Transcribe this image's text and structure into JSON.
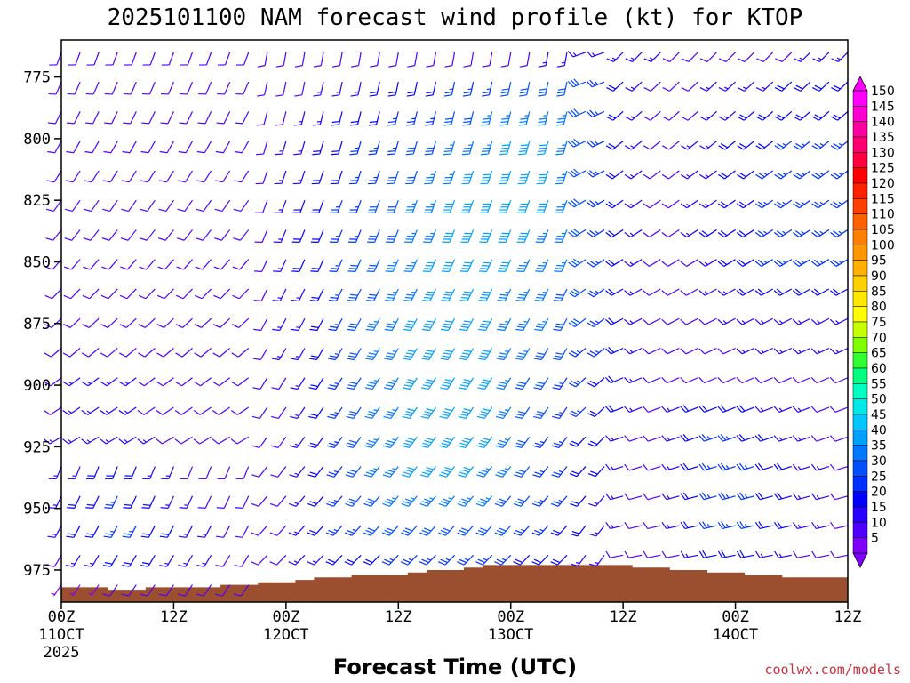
{
  "page": {
    "credit": "coolwx.com/models"
  },
  "chart_data": {
    "type": "wind_barb_profile",
    "title": "2025101100 NAM forecast wind profile (kt) for KTOP",
    "xlabel": "Forecast Time (UTC)",
    "ylabel": "",
    "x_ticks": [
      {
        "hour": 0,
        "label": "00Z",
        "sub": "11OCT",
        "sub2": "2025"
      },
      {
        "hour": 12,
        "label": "12Z",
        "sub": "",
        "sub2": ""
      },
      {
        "hour": 24,
        "label": "00Z",
        "sub": "12OCT",
        "sub2": ""
      },
      {
        "hour": 36,
        "label": "12Z",
        "sub": "",
        "sub2": ""
      },
      {
        "hour": 48,
        "label": "00Z",
        "sub": "13OCT",
        "sub2": ""
      },
      {
        "hour": 60,
        "label": "12Z",
        "sub": "",
        "sub2": ""
      },
      {
        "hour": 72,
        "label": "00Z",
        "sub": "14OCT",
        "sub2": ""
      },
      {
        "hour": 84,
        "label": "12Z",
        "sub": "",
        "sub2": ""
      }
    ],
    "y_ticks": [
      775,
      800,
      825,
      850,
      875,
      900,
      925,
      950,
      975
    ],
    "xlim": [
      0,
      84
    ],
    "ylim_hpa": [
      760,
      988
    ],
    "time_step_hours": 2,
    "pressure_levels_hpa": [
      765,
      777,
      789,
      801,
      813,
      825,
      837,
      849,
      861,
      873,
      885,
      897,
      909,
      921,
      933,
      945,
      957,
      969,
      981
    ],
    "wind_speed_kt": [
      [
        10,
        10,
        10,
        10,
        10,
        10,
        10,
        10,
        10,
        10,
        10,
        10,
        10,
        10,
        10,
        10,
        10,
        10,
        10,
        10,
        10,
        10,
        10,
        10,
        10,
        10,
        15,
        15,
        15,
        15,
        15,
        15,
        15,
        10,
        10,
        10,
        10,
        10,
        10,
        10,
        15,
        15,
        15
      ],
      [
        10,
        10,
        10,
        10,
        10,
        10,
        10,
        10,
        10,
        10,
        10,
        10,
        10,
        10,
        15,
        15,
        15,
        20,
        20,
        20,
        20,
        25,
        25,
        25,
        30,
        30,
        30,
        30,
        30,
        25,
        20,
        15,
        10,
        10,
        10,
        15,
        15,
        15,
        15,
        20,
        20,
        20,
        20
      ],
      [
        10,
        10,
        10,
        10,
        10,
        10,
        10,
        10,
        10,
        10,
        10,
        10,
        10,
        15,
        15,
        20,
        20,
        20,
        25,
        25,
        25,
        30,
        30,
        35,
        35,
        35,
        35,
        35,
        30,
        25,
        20,
        15,
        10,
        10,
        10,
        15,
        15,
        20,
        20,
        20,
        20,
        20,
        20
      ],
      [
        10,
        10,
        10,
        10,
        10,
        10,
        10,
        10,
        10,
        10,
        10,
        10,
        15,
        15,
        20,
        20,
        25,
        25,
        25,
        30,
        30,
        35,
        35,
        35,
        40,
        40,
        40,
        35,
        30,
        25,
        20,
        15,
        10,
        10,
        15,
        15,
        20,
        20,
        20,
        25,
        25,
        25,
        25
      ],
      [
        10,
        10,
        10,
        10,
        10,
        10,
        10,
        10,
        10,
        10,
        10,
        10,
        15,
        15,
        20,
        20,
        25,
        25,
        30,
        30,
        35,
        35,
        40,
        40,
        40,
        40,
        40,
        35,
        30,
        25,
        20,
        15,
        10,
        10,
        15,
        15,
        20,
        20,
        25,
        25,
        25,
        25,
        25
      ],
      [
        10,
        10,
        10,
        10,
        10,
        10,
        10,
        10,
        10,
        10,
        10,
        10,
        15,
        20,
        20,
        25,
        25,
        30,
        30,
        35,
        35,
        40,
        40,
        40,
        40,
        40,
        40,
        35,
        30,
        25,
        20,
        15,
        10,
        10,
        15,
        15,
        20,
        20,
        25,
        25,
        25,
        25,
        25
      ],
      [
        10,
        10,
        10,
        10,
        10,
        10,
        10,
        10,
        10,
        10,
        10,
        10,
        15,
        20,
        20,
        25,
        25,
        30,
        30,
        35,
        35,
        40,
        40,
        40,
        40,
        40,
        35,
        35,
        30,
        25,
        20,
        15,
        10,
        10,
        15,
        20,
        20,
        20,
        25,
        25,
        25,
        25,
        25
      ],
      [
        10,
        10,
        10,
        10,
        10,
        10,
        10,
        10,
        10,
        10,
        10,
        10,
        15,
        20,
        20,
        25,
        30,
        30,
        35,
        35,
        40,
        40,
        40,
        40,
        40,
        35,
        35,
        35,
        30,
        25,
        20,
        15,
        10,
        10,
        10,
        15,
        20,
        20,
        25,
        25,
        25,
        25,
        25
      ],
      [
        10,
        10,
        10,
        10,
        10,
        10,
        10,
        10,
        10,
        10,
        10,
        10,
        15,
        15,
        20,
        25,
        30,
        30,
        35,
        35,
        40,
        40,
        40,
        40,
        35,
        35,
        35,
        30,
        30,
        25,
        20,
        15,
        10,
        10,
        10,
        15,
        15,
        20,
        20,
        20,
        20,
        20,
        20
      ],
      [
        10,
        10,
        10,
        10,
        10,
        10,
        10,
        10,
        10,
        10,
        10,
        10,
        15,
        15,
        20,
        25,
        30,
        35,
        35,
        40,
        40,
        40,
        40,
        40,
        35,
        35,
        35,
        30,
        30,
        25,
        20,
        15,
        10,
        10,
        10,
        10,
        15,
        15,
        15,
        15,
        15,
        15,
        15
      ],
      [
        10,
        10,
        10,
        10,
        10,
        10,
        10,
        10,
        10,
        10,
        10,
        10,
        15,
        15,
        20,
        25,
        30,
        35,
        35,
        40,
        40,
        40,
        40,
        40,
        35,
        35,
        30,
        30,
        25,
        25,
        20,
        15,
        10,
        10,
        10,
        10,
        10,
        15,
        15,
        15,
        15,
        15,
        15
      ],
      [
        10,
        15,
        15,
        15,
        15,
        10,
        10,
        10,
        10,
        10,
        10,
        10,
        10,
        15,
        20,
        25,
        30,
        35,
        35,
        40,
        40,
        40,
        40,
        40,
        35,
        30,
        30,
        25,
        25,
        20,
        20,
        15,
        10,
        10,
        10,
        10,
        10,
        10,
        10,
        10,
        10,
        10,
        10
      ],
      [
        10,
        15,
        15,
        15,
        15,
        10,
        10,
        10,
        10,
        10,
        10,
        10,
        10,
        15,
        20,
        25,
        30,
        35,
        35,
        40,
        40,
        40,
        40,
        40,
        35,
        30,
        30,
        25,
        25,
        20,
        20,
        15,
        10,
        15,
        20,
        20,
        20,
        20,
        15,
        15,
        15,
        10,
        10
      ],
      [
        15,
        15,
        15,
        15,
        15,
        15,
        10,
        10,
        10,
        10,
        10,
        10,
        10,
        15,
        20,
        25,
        30,
        35,
        35,
        40,
        40,
        40,
        40,
        40,
        35,
        30,
        25,
        25,
        20,
        20,
        15,
        10,
        10,
        15,
        20,
        25,
        25,
        20,
        20,
        15,
        15,
        10,
        10
      ],
      [
        15,
        15,
        20,
        20,
        20,
        15,
        15,
        10,
        10,
        10,
        10,
        10,
        10,
        15,
        20,
        25,
        30,
        35,
        35,
        40,
        40,
        40,
        40,
        35,
        35,
        30,
        25,
        25,
        20,
        20,
        15,
        10,
        10,
        15,
        20,
        25,
        25,
        25,
        20,
        20,
        15,
        15,
        10
      ],
      [
        15,
        20,
        20,
        25,
        20,
        20,
        15,
        15,
        10,
        10,
        10,
        10,
        10,
        15,
        20,
        25,
        30,
        30,
        35,
        35,
        35,
        35,
        35,
        35,
        30,
        30,
        25,
        25,
        20,
        15,
        15,
        10,
        10,
        15,
        20,
        25,
        25,
        25,
        20,
        20,
        15,
        15,
        10
      ],
      [
        15,
        20,
        20,
        25,
        25,
        20,
        20,
        15,
        15,
        10,
        10,
        10,
        10,
        15,
        20,
        25,
        25,
        30,
        30,
        30,
        30,
        30,
        30,
        30,
        30,
        25,
        25,
        20,
        20,
        15,
        15,
        10,
        10,
        15,
        20,
        25,
        25,
        25,
        20,
        20,
        15,
        15,
        10
      ],
      [
        10,
        15,
        15,
        20,
        20,
        20,
        15,
        15,
        15,
        10,
        10,
        10,
        10,
        15,
        15,
        20,
        20,
        20,
        25,
        25,
        25,
        25,
        25,
        25,
        25,
        20,
        20,
        20,
        15,
        15,
        10,
        10,
        10,
        10,
        15,
        20,
        20,
        20,
        15,
        15,
        10,
        10,
        10
      ],
      [
        5,
        5,
        5,
        10,
        10,
        10,
        10,
        10,
        10,
        10,
        10,
        10,
        10,
        10,
        10,
        10,
        15,
        15,
        15,
        15,
        15,
        15,
        15,
        15,
        15,
        15,
        15,
        15,
        10,
        10,
        10,
        5,
        5,
        5,
        10,
        10,
        10,
        10,
        10,
        10,
        10,
        5,
        5
      ]
    ],
    "terrain_surface_hpa": [
      982,
      982,
      982,
      983,
      983,
      982,
      982,
      982,
      982,
      981,
      981,
      980,
      980,
      979,
      978,
      978,
      977,
      977,
      977,
      976,
      975,
      975,
      974,
      973,
      973,
      973,
      973,
      973,
      973,
      973,
      973,
      974,
      974,
      975,
      975,
      976,
      976,
      977,
      977,
      978,
      978,
      978,
      978
    ],
    "colorbar": {
      "min": 5,
      "max": 150,
      "step": 5,
      "labels": [
        150,
        145,
        140,
        135,
        130,
        125,
        120,
        115,
        110,
        105,
        100,
        95,
        90,
        85,
        80,
        75,
        70,
        65,
        60,
        55,
        50,
        45,
        40,
        35,
        30,
        25,
        20,
        15,
        10,
        5
      ],
      "colors": [
        "#ff00ff",
        "#ff00d2",
        "#ff00a0",
        "#ff0070",
        "#ff0040",
        "#ff0000",
        "#ff2000",
        "#ff4000",
        "#ff6000",
        "#ff8000",
        "#ff9800",
        "#ffb000",
        "#ffd000",
        "#ffe800",
        "#ffff00",
        "#c8ff00",
        "#80ff00",
        "#30ff30",
        "#00ff80",
        "#00ffc0",
        "#00e8e8",
        "#00c8ff",
        "#00a0ff",
        "#0078ff",
        "#0050ff",
        "#0030ff",
        "#0000ff",
        "#2800ff",
        "#5000ff",
        "#8000ff"
      ]
    }
  }
}
